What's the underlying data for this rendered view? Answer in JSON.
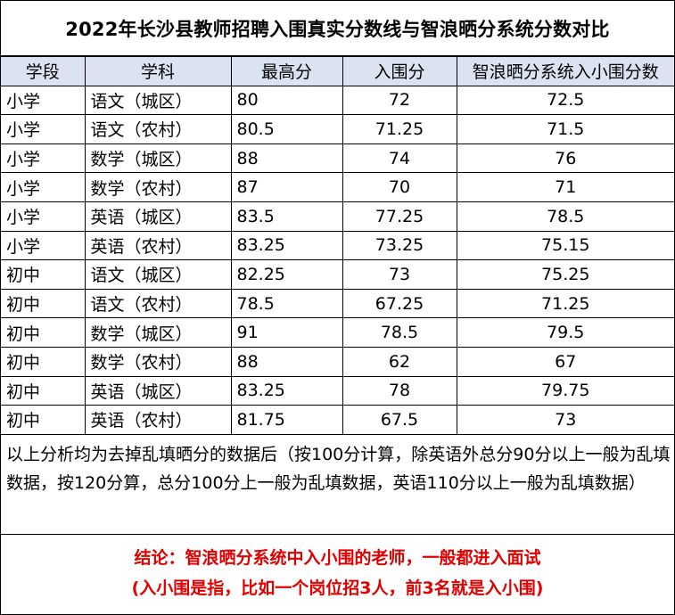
{
  "title": "2022年长沙县教师招聘入围真实分数线与智浪晒分系统分数对比",
  "headers": [
    "学段",
    "学科",
    "最高分",
    "入围分",
    "智浪晒分系统入小围分数"
  ],
  "rows": [
    [
      "小学",
      "语文（城区）",
      "80",
      "72",
      "72.5"
    ],
    [
      "小学",
      "语文（农村）",
      "80.5",
      "71.25",
      "71.5"
    ],
    [
      "小学",
      "数学（城区）",
      "88",
      "74",
      "76"
    ],
    [
      "小学",
      "数学（农村）",
      "87",
      "70",
      "71"
    ],
    [
      "小学",
      "英语（城区）",
      "83.5",
      "77.25",
      "78.5"
    ],
    [
      "小学",
      "英语（农村）",
      "83.25",
      "73.25",
      "75.15"
    ],
    [
      "初中",
      "语文（城区）",
      "82.25",
      "73",
      "75.25"
    ],
    [
      "初中",
      "语文（农村）",
      "78.5",
      "67.25",
      "71.25"
    ],
    [
      "初中",
      "数学（城区）",
      "91",
      "78.5",
      "79.5"
    ],
    [
      "初中",
      "数学（农村）",
      "88",
      "62",
      "67"
    ],
    [
      "初中",
      "英语（城区）",
      "83.25",
      "78",
      "79.75"
    ],
    [
      "初中",
      "英语（农村）",
      "81.75",
      "67.5",
      "73"
    ]
  ],
  "note": "以上分析均为去掉乱填晒分的数据后（按100分计算，除英语外总分90分以上一般为乱填数据，按120分算，总分100分上一般为乱填数据，英语110分以上一般为乱填数据）",
  "conclusion_line1": "结论：智浪晒分系统中入小围的老师，一般都进入面试",
  "conclusion_line2": "(入小围是指，比如一个岗位招3人，前3名就是入小围)",
  "colors": {
    "header_bg": "#dbe2f1",
    "conclusion_text": "#e00000"
  }
}
